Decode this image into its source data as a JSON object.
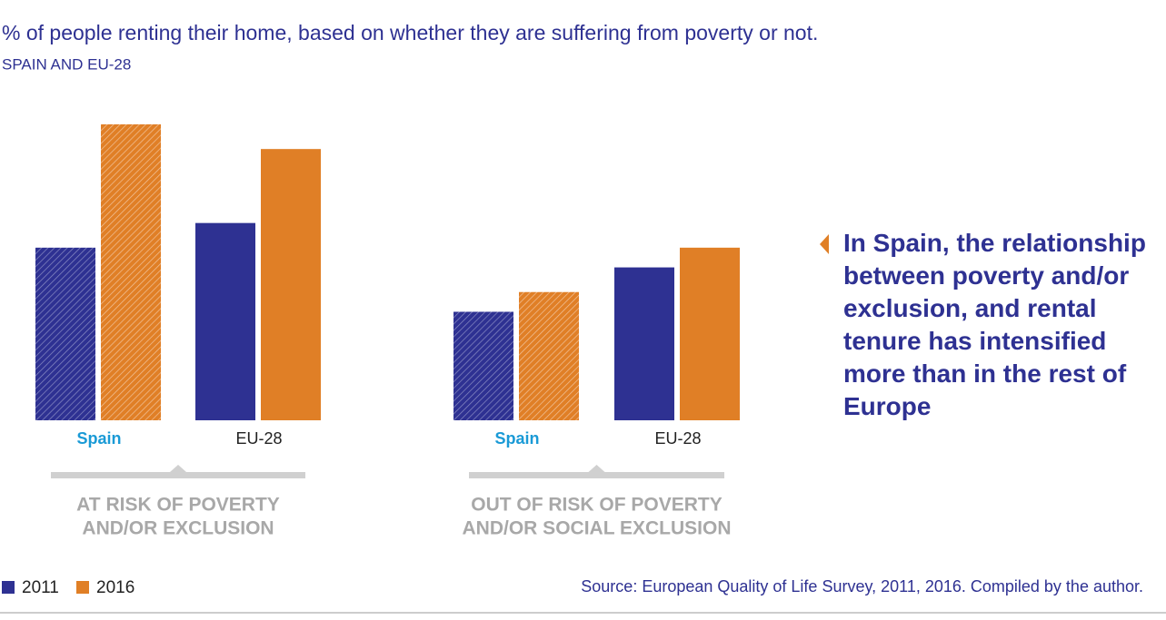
{
  "chart_data": {
    "type": "bar",
    "title": "% of people renting their home, based on whether they are suffering from poverty or not.",
    "subtitle": "SPAIN AND EU-28",
    "categories": [
      "Spain",
      "EU-28",
      "Spain",
      "EU-28"
    ],
    "category_colors": [
      "#1a9ad6",
      "#222222",
      "#1a9ad6",
      "#222222"
    ],
    "hatched": [
      true,
      false,
      true,
      false
    ],
    "groups": [
      {
        "label_lines": [
          "AT RISK OF POVERTY",
          "AND/OR EXCLUSION"
        ]
      },
      {
        "label_lines": [
          "OUT OF RISK OF POVERTY",
          "AND/OR SOCIAL EXCLUSION"
        ]
      }
    ],
    "series": [
      {
        "name": "2011",
        "color": "#2e3192",
        "values": [
          35,
          40,
          22,
          31
        ]
      },
      {
        "name": "2016",
        "color": "#e07f26",
        "values": [
          60,
          55,
          26,
          35
        ]
      }
    ],
    "ylim": [
      0,
      60
    ],
    "annotation": "In Spain, the relationship between poverty and/or exclusion, and rental tenure has intensified more than in the rest of Europe",
    "source": "Source: European Quality of Life Survey, 2011, 2016. Compiled by the author."
  }
}
